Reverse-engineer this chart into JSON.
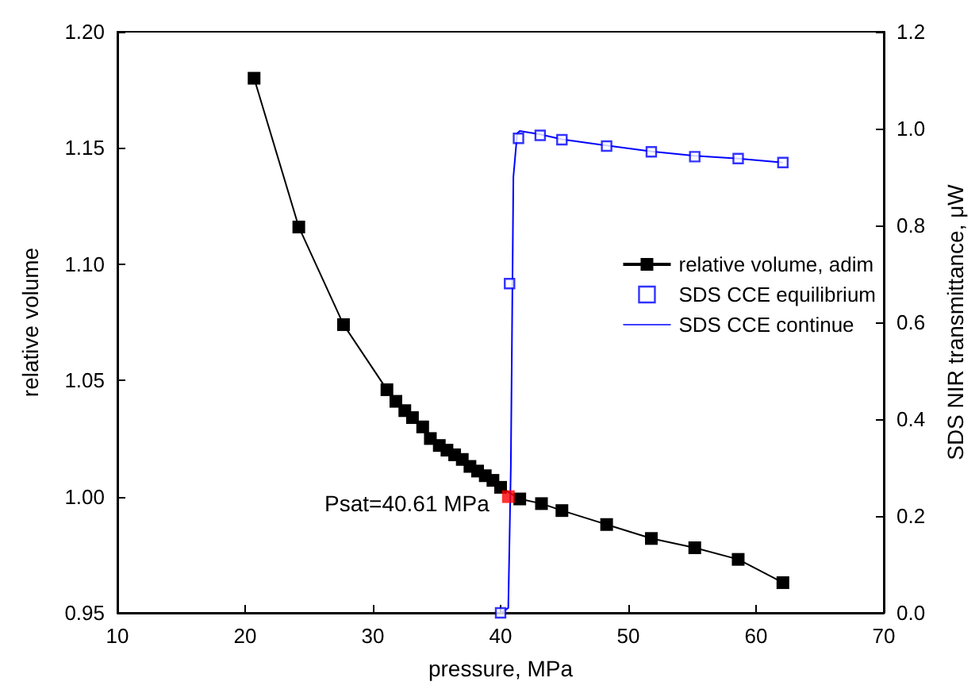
{
  "chart_data": {
    "type": "line",
    "xlabel": "pressure, MPa",
    "ylabel": "relative volume",
    "y2label": "SDS NIR transmittance, μW",
    "xlim": [
      10,
      70
    ],
    "xticks": [
      10,
      20,
      30,
      40,
      50,
      60,
      70
    ],
    "ylim": [
      0.95,
      1.2
    ],
    "yticks": [
      {
        "value": 0.95,
        "label": "0.95"
      },
      {
        "value": 1,
        "label": "1.00"
      },
      {
        "value": 1.05,
        "label": "1.05"
      },
      {
        "value": 1.1,
        "label": "1.10"
      },
      {
        "value": 1.15,
        "label": "1.15"
      },
      {
        "value": 1.2,
        "label": "1.20"
      }
    ],
    "y2lim": [
      0,
      1.2
    ],
    "y2ticks": [
      {
        "value": 0,
        "label": "0.0"
      },
      {
        "value": 0.2,
        "label": "0.2"
      },
      {
        "value": 0.4,
        "label": "0.4"
      },
      {
        "value": 0.6,
        "label": "0.6"
      },
      {
        "value": 0.8,
        "label": "0.8"
      },
      {
        "value": 1,
        "label": "1.0"
      },
      {
        "value": 1.2,
        "label": "1.2"
      }
    ],
    "grid": false,
    "legend": "right",
    "annotations": [
      {
        "text": "Psat=40.61 MPa",
        "x": 40.61,
        "y": 1.0
      }
    ],
    "series": [
      {
        "name": "relative volume, adim",
        "marker": "square",
        "color": "#000000",
        "x": [
          20.7,
          24.2,
          27.7,
          31.1,
          31.8,
          32.5,
          33.1,
          33.9,
          34.5,
          35.2,
          35.8,
          36.4,
          37.0,
          37.6,
          38.2,
          38.8,
          39.4,
          40.0,
          41.5,
          43.2,
          44.8,
          48.3,
          51.8,
          55.2,
          58.6,
          62.1
        ],
        "values": [
          1.18,
          1.116,
          1.074,
          1.046,
          1.041,
          1.037,
          1.034,
          1.03,
          1.025,
          1.022,
          1.02,
          1.018,
          1.016,
          1.013,
          1.011,
          1.009,
          1.007,
          1.004,
          0.999,
          0.997,
          0.994,
          0.988,
          0.982,
          0.978,
          0.973,
          0.963
        ]
      },
      {
        "type": "scatter",
        "marker": "square",
        "color": "#ff0000",
        "x": [
          40.61
        ],
        "values": [
          1.0
        ]
      },
      {
        "name": "SDS CCE equilibrium",
        "type": "scatter",
        "marker": "square",
        "color": "#0000ff",
        "axis": "y2",
        "x": [
          40.0,
          40.7,
          41.4,
          43.1,
          44.8,
          48.3,
          51.8,
          55.2,
          58.6,
          62.1
        ],
        "values": [
          0.0,
          0.68,
          0.98,
          0.986,
          0.977,
          0.964,
          0.952,
          0.942,
          0.938,
          0.93
        ]
      },
      {
        "name": "SDS CCE continue",
        "marker": "none",
        "color": "#0000ff",
        "axis": "y2",
        "x": [
          40.0,
          40.6,
          40.8,
          41.0,
          41.3,
          41.5,
          43.1,
          44.8,
          48.3,
          51.8,
          55.2,
          58.6,
          62.1
        ],
        "values": [
          0.0,
          0.01,
          0.3,
          0.9,
          0.99,
          0.995,
          0.988,
          0.978,
          0.965,
          0.953,
          0.944,
          0.938,
          0.93
        ]
      }
    ]
  }
}
